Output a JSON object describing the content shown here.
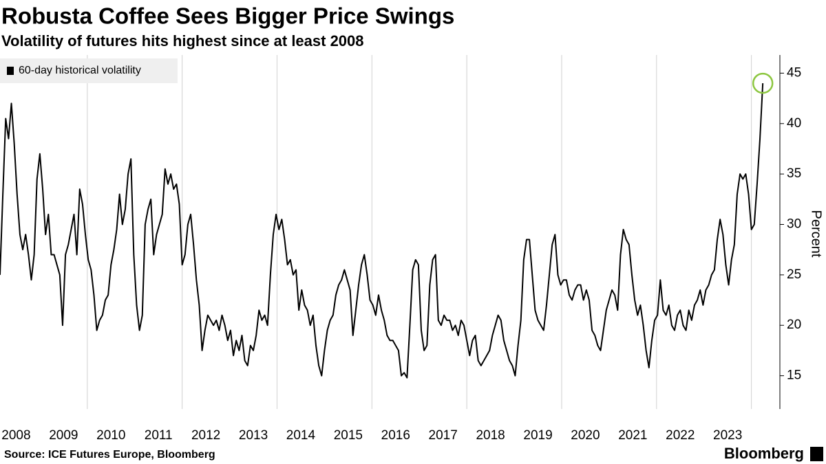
{
  "chart_data": {
    "type": "line",
    "title": "Robusta Coffee Sees Bigger Price Swings",
    "subtitle": "Volatility of futures hits highest since at least 2008",
    "source": "Source: ICE Futures Europe, Bloomberg",
    "brand": "Bloomberg",
    "y_label": "Percent",
    "legend": "top-left",
    "highlight_color": "#8cc63f",
    "xlim": [
      2008.16,
      2024.6
    ],
    "xticks": [
      2008,
      2009,
      2010,
      2011,
      2012,
      2013,
      2014,
      2015,
      2016,
      2017,
      2018,
      2019,
      2020,
      2021,
      2022,
      2023
    ],
    "x_gridlines": [
      2010,
      2012,
      2014,
      2016,
      2018,
      2020,
      2022,
      2024
    ],
    "ylim": [
      11.7,
      46.8
    ],
    "yticks": [
      15,
      20,
      25,
      30,
      35,
      40,
      45
    ],
    "x": [
      2008.16,
      2008.22,
      2008.28,
      2008.34,
      2008.4,
      2008.46,
      2008.52,
      2008.58,
      2008.64,
      2008.7,
      2008.76,
      2008.82,
      2008.88,
      2008.94,
      2009.0,
      2009.06,
      2009.12,
      2009.18,
      2009.24,
      2009.3,
      2009.36,
      2009.42,
      2009.48,
      2009.54,
      2009.6,
      2009.66,
      2009.72,
      2009.78,
      2009.84,
      2009.9,
      2009.96,
      2010.02,
      2010.08,
      2010.14,
      2010.2,
      2010.26,
      2010.32,
      2010.38,
      2010.44,
      2010.5,
      2010.56,
      2010.62,
      2010.68,
      2010.74,
      2010.8,
      2010.86,
      2010.92,
      2010.98,
      2011.04,
      2011.1,
      2011.16,
      2011.22,
      2011.28,
      2011.34,
      2011.4,
      2011.46,
      2011.52,
      2011.58,
      2011.64,
      2011.7,
      2011.76,
      2011.82,
      2011.88,
      2011.94,
      2012.0,
      2012.06,
      2012.12,
      2012.18,
      2012.24,
      2012.3,
      2012.36,
      2012.42,
      2012.48,
      2012.54,
      2012.6,
      2012.66,
      2012.72,
      2012.78,
      2012.84,
      2012.9,
      2012.96,
      2013.02,
      2013.08,
      2013.14,
      2013.2,
      2013.26,
      2013.32,
      2013.38,
      2013.44,
      2013.5,
      2013.56,
      2013.62,
      2013.68,
      2013.74,
      2013.8,
      2013.86,
      2013.92,
      2013.98,
      2014.04,
      2014.1,
      2014.16,
      2014.22,
      2014.28,
      2014.34,
      2014.4,
      2014.46,
      2014.52,
      2014.58,
      2014.64,
      2014.7,
      2014.76,
      2014.82,
      2014.88,
      2014.94,
      2015.0,
      2015.06,
      2015.12,
      2015.18,
      2015.24,
      2015.3,
      2015.36,
      2015.42,
      2015.48,
      2015.54,
      2015.6,
      2015.66,
      2015.72,
      2015.78,
      2015.84,
      2015.9,
      2015.96,
      2016.02,
      2016.08,
      2016.14,
      2016.2,
      2016.26,
      2016.32,
      2016.38,
      2016.44,
      2016.5,
      2016.56,
      2016.62,
      2016.68,
      2016.74,
      2016.8,
      2016.86,
      2016.92,
      2016.98,
      2017.04,
      2017.1,
      2017.16,
      2017.22,
      2017.28,
      2017.34,
      2017.4,
      2017.46,
      2017.52,
      2017.58,
      2017.64,
      2017.7,
      2017.76,
      2017.82,
      2017.88,
      2017.94,
      2018.0,
      2018.06,
      2018.12,
      2018.18,
      2018.24,
      2018.3,
      2018.36,
      2018.42,
      2018.48,
      2018.54,
      2018.6,
      2018.66,
      2018.72,
      2018.78,
      2018.84,
      2018.9,
      2018.96,
      2019.02,
      2019.08,
      2019.14,
      2019.2,
      2019.26,
      2019.32,
      2019.38,
      2019.44,
      2019.5,
      2019.56,
      2019.62,
      2019.68,
      2019.74,
      2019.8,
      2019.86,
      2019.92,
      2019.98,
      2020.04,
      2020.1,
      2020.16,
      2020.22,
      2020.28,
      2020.34,
      2020.4,
      2020.46,
      2020.52,
      2020.58,
      2020.64,
      2020.7,
      2020.76,
      2020.82,
      2020.88,
      2020.94,
      2021.0,
      2021.06,
      2021.12,
      2021.18,
      2021.24,
      2021.3,
      2021.36,
      2021.42,
      2021.48,
      2021.54,
      2021.6,
      2021.66,
      2021.72,
      2021.78,
      2021.84,
      2021.9,
      2021.96,
      2022.02,
      2022.08,
      2022.14,
      2022.2,
      2022.26,
      2022.32,
      2022.38,
      2022.44,
      2022.5,
      2022.56,
      2022.62,
      2022.68,
      2022.74,
      2022.8,
      2022.86,
      2022.92,
      2022.98,
      2023.04,
      2023.1,
      2023.16,
      2023.22,
      2023.28,
      2023.34,
      2023.4,
      2023.46,
      2023.52,
      2023.58,
      2023.64,
      2023.7,
      2023.76,
      2023.82,
      2023.88,
      2023.94,
      2024.0,
      2024.06,
      2024.12,
      2024.18,
      2024.24
    ],
    "series": [
      {
        "name": "60-day historical volatility",
        "color": "#000000",
        "values": [
          25,
          33,
          40.5,
          38.5,
          42,
          38,
          33,
          29,
          27.5,
          29,
          27,
          24.5,
          27,
          34.5,
          37,
          33.5,
          29,
          31,
          27,
          27,
          26,
          25,
          20,
          27,
          28,
          29.5,
          31,
          27,
          33.5,
          32,
          29,
          26.5,
          25.5,
          23,
          19.5,
          20.5,
          21,
          22.5,
          23,
          26,
          27.5,
          29.5,
          33,
          30,
          31.5,
          35,
          36.5,
          27,
          22,
          19.5,
          21,
          30,
          31.5,
          32.5,
          27,
          29,
          30,
          31,
          35.5,
          34,
          35,
          33.5,
          34,
          32,
          26,
          27,
          30,
          31,
          28,
          24.5,
          22,
          17.5,
          19.5,
          21,
          20.5,
          20,
          20.5,
          19.5,
          21,
          20,
          18.5,
          19.5,
          17,
          18.5,
          17.5,
          19,
          16.5,
          16,
          18,
          17.5,
          19,
          21.5,
          20.5,
          21,
          20,
          25,
          29,
          31,
          29.5,
          30.5,
          28.5,
          26,
          26.5,
          25,
          25.5,
          21.5,
          23.5,
          22,
          21.5,
          20,
          21,
          18,
          16,
          15,
          17.5,
          19.5,
          20.5,
          21,
          23,
          24,
          24.5,
          25.5,
          24.5,
          23.5,
          19,
          21.5,
          24,
          26,
          27,
          25,
          22.5,
          22,
          21,
          23,
          21.5,
          20.5,
          19,
          18.5,
          18.5,
          18,
          17.5,
          15,
          15.3,
          14.8,
          20,
          25.5,
          26.5,
          26,
          19.5,
          17.5,
          18,
          24,
          26.5,
          27,
          20.5,
          20,
          21,
          20.5,
          20.5,
          19.5,
          20,
          19,
          20.5,
          20,
          18.5,
          17,
          18.5,
          19,
          16.5,
          16,
          16.5,
          17,
          17.5,
          19,
          20,
          21,
          20.5,
          18.5,
          17.5,
          16.5,
          16,
          15,
          18,
          20.5,
          26.5,
          28.5,
          28.5,
          25,
          21.5,
          20.5,
          20,
          19.5,
          22,
          25,
          28,
          29,
          25,
          24,
          24.5,
          24.5,
          23,
          22.5,
          23.5,
          24,
          24,
          22.5,
          23.5,
          22.5,
          19.5,
          19,
          18,
          17.5,
          19.5,
          21.5,
          22.5,
          23.5,
          23,
          21.5,
          27,
          29.5,
          28.5,
          28,
          25,
          22.5,
          21,
          22,
          20,
          17.5,
          15.8,
          18.5,
          20.5,
          21,
          24.5,
          21.5,
          21,
          22,
          20,
          19.5,
          21,
          21.5,
          20,
          19.5,
          21.5,
          20.5,
          22,
          22.5,
          23.5,
          22,
          23.5,
          24,
          25,
          25.5,
          28.5,
          30.5,
          29,
          26,
          24,
          26.5,
          28,
          33,
          35,
          34.5,
          35,
          33,
          29.5,
          30,
          34,
          38.5,
          44
        ]
      }
    ]
  }
}
